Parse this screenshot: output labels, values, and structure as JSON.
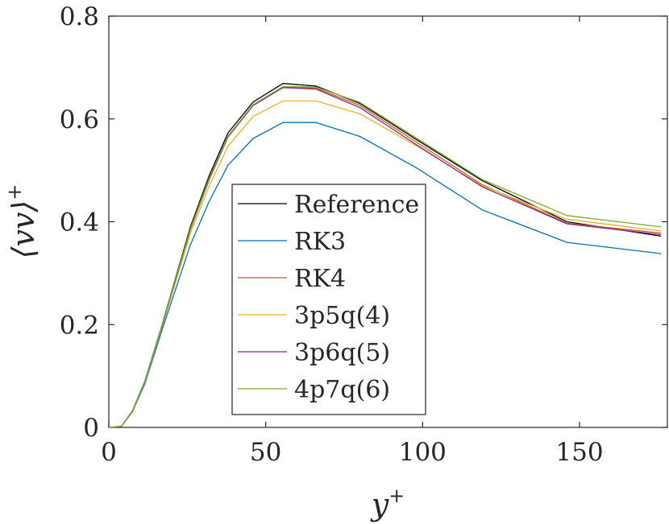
{
  "chart_data": {
    "type": "line",
    "xlabel": {
      "base": "y",
      "sup": "+"
    },
    "ylabel": {
      "base": "⟨vv⟩",
      "sup": "+"
    },
    "xlim": [
      0,
      178
    ],
    "ylim": [
      0,
      0.8
    ],
    "xticks": [
      0,
      50,
      100,
      150
    ],
    "xtick_labels": [
      "0",
      "50",
      "100",
      "150"
    ],
    "yticks": [
      0,
      0.2,
      0.4,
      0.6,
      0.8
    ],
    "ytick_labels": [
      "0",
      "0.2",
      "0.4",
      "0.6",
      "0.8"
    ],
    "grid": false,
    "legend_position": "center-bottom",
    "x": [
      0,
      4,
      7.5,
      11.5,
      17,
      26,
      32,
      38,
      46,
      55.5,
      66,
      80,
      98,
      119,
      146,
      176
    ],
    "series": [
      {
        "name": "Reference",
        "color": "#000000",
        "values": [
          0,
          0.002,
          0.032,
          0.09,
          0.2,
          0.39,
          0.49,
          0.573,
          0.633,
          0.669,
          0.664,
          0.63,
          0.56,
          0.48,
          0.4,
          0.372
        ]
      },
      {
        "name": "RK3",
        "color": "#0072bd",
        "values": [
          0,
          0.002,
          0.03,
          0.085,
          0.19,
          0.355,
          0.44,
          0.51,
          0.562,
          0.593,
          0.593,
          0.566,
          0.505,
          0.423,
          0.36,
          0.338
        ]
      },
      {
        "name": "RK4",
        "color": "#d95319",
        "values": [
          0,
          0.002,
          0.031,
          0.089,
          0.198,
          0.385,
          0.483,
          0.565,
          0.627,
          0.662,
          0.66,
          0.626,
          0.555,
          0.472,
          0.397,
          0.378
        ]
      },
      {
        "name": "3p5q(4)",
        "color": "#edb120",
        "values": [
          0,
          0.002,
          0.031,
          0.088,
          0.196,
          0.378,
          0.47,
          0.547,
          0.605,
          0.635,
          0.635,
          0.61,
          0.548,
          0.47,
          0.405,
          0.382
        ]
      },
      {
        "name": "3p6q(5)",
        "color": "#7e2f8e",
        "values": [
          0,
          0.002,
          0.031,
          0.089,
          0.198,
          0.385,
          0.482,
          0.565,
          0.626,
          0.661,
          0.658,
          0.622,
          0.55,
          0.468,
          0.396,
          0.375
        ]
      },
      {
        "name": "4p7q(6)",
        "color": "#77ac30",
        "values": [
          0,
          0.002,
          0.031,
          0.089,
          0.199,
          0.386,
          0.485,
          0.567,
          0.628,
          0.663,
          0.662,
          0.632,
          0.563,
          0.482,
          0.412,
          0.39
        ]
      }
    ]
  }
}
